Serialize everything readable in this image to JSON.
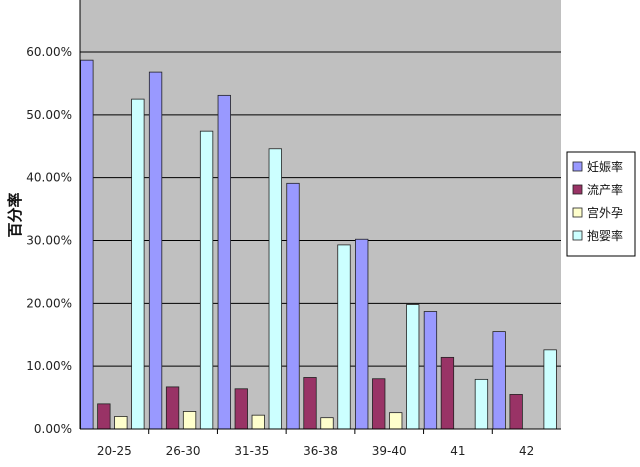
{
  "chart_data": {
    "type": "bar",
    "title": "",
    "xlabel": "",
    "ylabel": "百分率",
    "categories": [
      "20-25",
      "26-30",
      "31-35",
      "36-38",
      "39-40",
      "41",
      "42"
    ],
    "ylim": [
      0,
      0.6
    ],
    "yticks": [
      "0.00%",
      "10.00%",
      "20.00%",
      "30.00%",
      "40.00%",
      "50.00%",
      "60.00%"
    ],
    "grid": true,
    "legend_position": "right",
    "series": [
      {
        "name": "妊娠率",
        "color": "#9999ff",
        "values": [
          0.587,
          0.568,
          0.531,
          0.391,
          0.302,
          0.187,
          0.155
        ]
      },
      {
        "name": "流产率",
        "color": "#993366",
        "values": [
          0.04,
          0.067,
          0.064,
          0.082,
          0.08,
          0.114,
          0.055
        ]
      },
      {
        "name": "宫外孕",
        "color": "#ffffcc",
        "values": [
          0.02,
          0.028,
          0.022,
          0.018,
          0.026,
          0.0,
          0.0
        ]
      },
      {
        "name": "抱婴率",
        "color": "#ccffff",
        "values": [
          0.525,
          0.474,
          0.446,
          0.293,
          0.198,
          0.079,
          0.126
        ]
      }
    ],
    "plot_area_color": "#c0c0c0"
  }
}
